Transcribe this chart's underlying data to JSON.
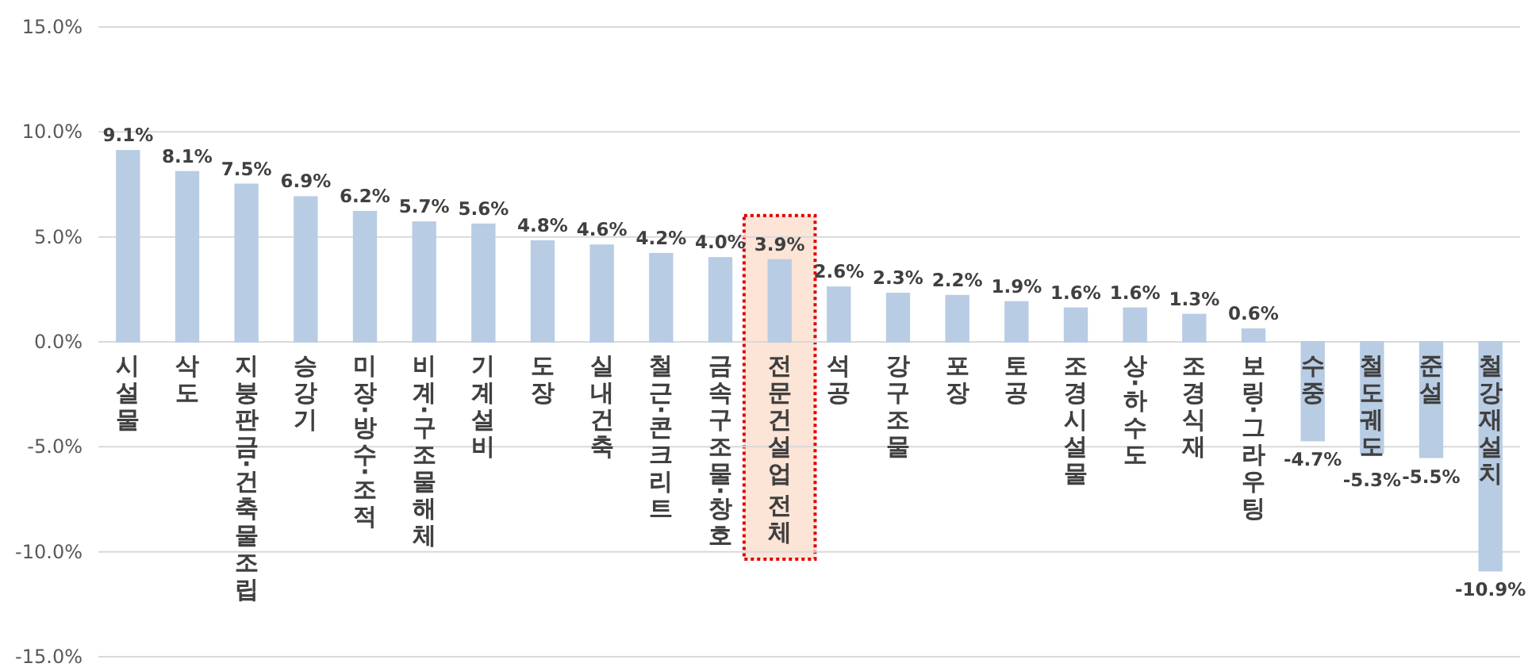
{
  "chart_data": {
    "type": "bar",
    "categories": [
      "시설물",
      "삭도",
      "지붕판금·건축물조립",
      "승강기",
      "미장·방수·조적",
      "비계·구조물해체",
      "기계설비",
      "도장",
      "실내건축",
      "철근·콘크리트",
      "금속구조물·창호",
      "전문건설업 전체",
      "석공",
      "강구조물",
      "포장",
      "토공",
      "조경시설물",
      "상·하수도",
      "조경식재",
      "보링·그라우팅",
      "수중",
      "철도궤도",
      "준설",
      "철강재설치"
    ],
    "values": [
      9.1,
      8.1,
      7.5,
      6.9,
      6.2,
      5.7,
      5.6,
      4.8,
      4.6,
      4.2,
      4.0,
      3.9,
      2.6,
      2.3,
      2.2,
      1.9,
      1.6,
      1.6,
      1.3,
      0.6,
      -4.7,
      -5.3,
      -5.5,
      -10.9
    ],
    "value_labels": [
      "9.1%",
      "8.1%",
      "7.5%",
      "6.9%",
      "6.2%",
      "5.7%",
      "5.6%",
      "4.8%",
      "4.6%",
      "4.2%",
      "4.0%",
      "3.9%",
      "2.6%",
      "2.3%",
      "2.2%",
      "1.9%",
      "1.6%",
      "1.6%",
      "1.3%",
      "0.6%",
      "-4.7%",
      "-5.3%",
      "-5.5%",
      "-10.9%"
    ],
    "color": "#b8cce4",
    "ylim": [
      -15,
      15
    ],
    "yticks": [
      {
        "value": 15,
        "label": "15.0%"
      },
      {
        "value": 10,
        "label": "10.0%"
      },
      {
        "value": 5,
        "label": "5.0%"
      },
      {
        "value": 0,
        "label": "0.0%"
      },
      {
        "value": -5,
        "label": "-5.0%"
      },
      {
        "value": -10,
        "label": "-10.0%"
      },
      {
        "value": -15,
        "label": "-15.0%"
      }
    ],
    "grid": "y",
    "bands": [
      {
        "axis": "x",
        "from": "전문건설업 전체",
        "to": "전문건설업 전체",
        "color": "#fce4d6"
      }
    ]
  }
}
